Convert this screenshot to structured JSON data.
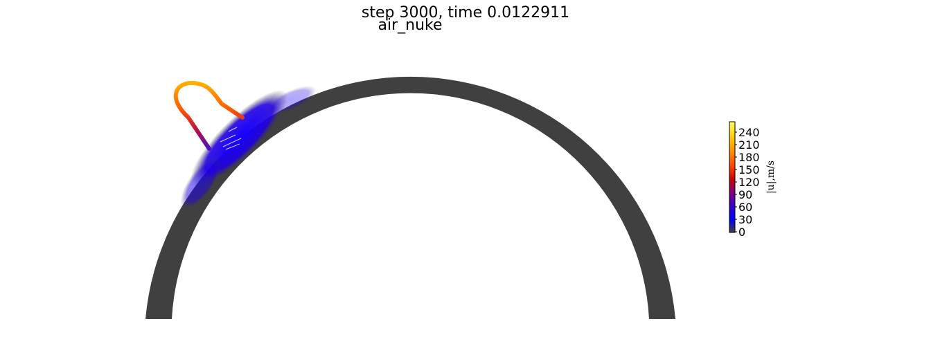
{
  "chart_data": {
    "type": "heatmap",
    "title": "step 3000, time 0.0122911",
    "subtitle": "air_nuke",
    "colorbar": {
      "label": "|u|,m/s",
      "ticks": [
        "0",
        "30",
        "60",
        "90",
        "120",
        "150",
        "180",
        "210",
        "240"
      ],
      "range": [
        0,
        250
      ],
      "colors": [
        "#404040",
        "#0000ff",
        "#3300cc",
        "#800080",
        "#cc0000",
        "#ff4400",
        "#ff8800",
        "#ffcc00",
        "#ffff66"
      ]
    },
    "field_colors": {
      "background_field": "#404040",
      "low_velocity": "#1a00ff",
      "loop_low": "#7a10a0",
      "loop_mid": "#d81020",
      "loop_high": "#ffa000"
    }
  }
}
